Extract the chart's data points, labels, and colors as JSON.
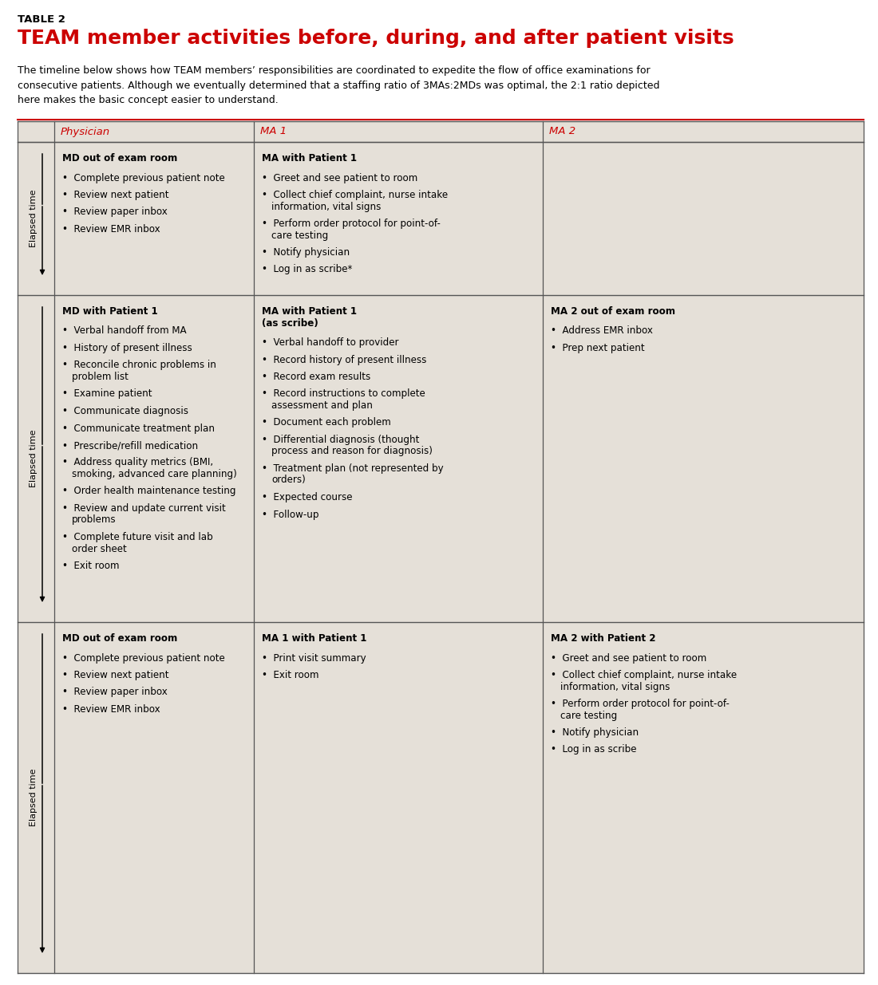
{
  "table_label": "TABLE 2",
  "title": "TEAM member activities before, during, and after patient visits",
  "subtitle": "The timeline below shows how TEAM members’ responsibilities are coordinated to expedite the flow of office examinations for\nconsecutive patients. Although we eventually determined that a staffing ratio of 3MAs:2MDs was optimal, the 2:1 ratio depicted\nhere makes the basic concept easier to understand.",
  "title_color": "#cc0000",
  "table_label_color": "#000000",
  "header_color": "#cc0000",
  "bg_color": "#e5e0d8",
  "white_bg": "#ffffff",
  "border_color": "#555555",
  "text_color": "#000000",
  "columns": [
    "Physician",
    "MA 1",
    "MA 2"
  ],
  "row0": {
    "physician_title": "MD out of exam room",
    "physician_items": [
      "Complete previous patient note",
      "Review next patient",
      "Review paper inbox",
      "Review EMR inbox"
    ],
    "ma1_title": "MA with Patient 1",
    "ma1_items": [
      "Greet and see patient to room",
      "Collect chief complaint, nurse intake\n    information, vital signs",
      "Perform order protocol for point-of-\n    care testing",
      "Notify physician",
      "Log in as scribe*"
    ],
    "ma2_title": "",
    "ma2_items": []
  },
  "row1": {
    "physician_title": "MD with Patient 1",
    "physician_items": [
      "Verbal handoff from MA",
      "History of present illness",
      "Reconcile chronic problems in\n    problem list",
      "Examine patient",
      "Communicate diagnosis",
      "Communicate treatment plan",
      "Prescribe/refill medication",
      "Address quality metrics (BMI,\n    smoking, advanced care planning)",
      "Order health maintenance testing",
      "Review and update current visit\n    problems",
      "Complete future visit and lab\n    order sheet",
      "Exit room"
    ],
    "ma1_title": "MA with Patient 1\n(as scribe)",
    "ma1_items": [
      "Verbal handoff to provider",
      "Record history of present illness",
      "Record exam results",
      "Record instructions to complete\n    assessment and plan",
      "Document each problem",
      "Differential diagnosis (thought\n    process and reason for diagnosis)",
      "Treatment plan (not represented by\n    orders)",
      "Expected course",
      "Follow-up"
    ],
    "ma2_title": "MA 2 out of exam room",
    "ma2_items": [
      "Address EMR inbox",
      "Prep next patient"
    ]
  },
  "row2": {
    "physician_title": "MD out of exam room",
    "physician_items": [
      "Complete previous patient note",
      "Review next patient",
      "Review paper inbox",
      "Review EMR inbox"
    ],
    "ma1_title": "MA 1 with Patient 1",
    "ma1_items": [
      "Print visit summary",
      "Exit room"
    ],
    "ma2_title": "MA 2 with Patient 2",
    "ma2_items": [
      "Greet and see patient to room",
      "Collect chief complaint, nurse intake\n    information, vital signs",
      "Perform order protocol for point-of-\n    care testing",
      "Notify physician",
      "Log in as scribe"
    ]
  }
}
